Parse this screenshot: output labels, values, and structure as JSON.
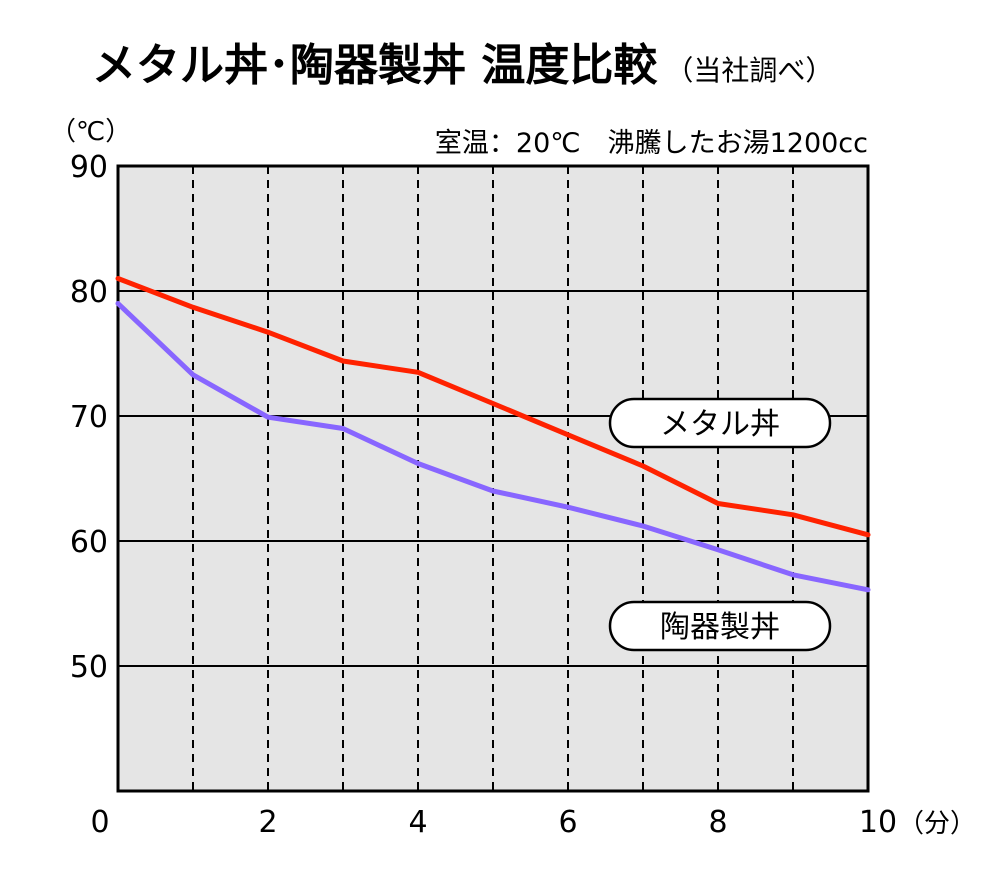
{
  "chart_data": {
    "type": "line",
    "title": "メタル丼･陶器製丼 温度比較",
    "subtitle": "（当社調べ）",
    "conditions": "室温：20℃　沸騰したお湯1200cc",
    "ylabel": "（℃）",
    "xlabel": "（分）",
    "xlim": [
      0,
      10
    ],
    "ylim": [
      40,
      90
    ],
    "x_ticks": [
      0,
      2,
      4,
      6,
      8,
      10
    ],
    "y_ticks": [
      50,
      60,
      70,
      80,
      90
    ],
    "grid": {
      "x": "dashed",
      "y": "solid"
    },
    "x": [
      0,
      1,
      2,
      3,
      4,
      5,
      6,
      7,
      8,
      9,
      10
    ],
    "series": [
      {
        "name": "メタル丼",
        "color": "#ff2200",
        "values": [
          81,
          78.7,
          76.7,
          74.4,
          73.5,
          71,
          68.5,
          66,
          63,
          62.1,
          60.5
        ],
        "label_position": "right-above-line"
      },
      {
        "name": "陶器製丼",
        "color": "#8866ff",
        "values": [
          79,
          73.3,
          69.9,
          69,
          66.2,
          64,
          62.7,
          61.2,
          59.3,
          57.3,
          56.1
        ],
        "label_position": "right-below-line"
      }
    ]
  }
}
